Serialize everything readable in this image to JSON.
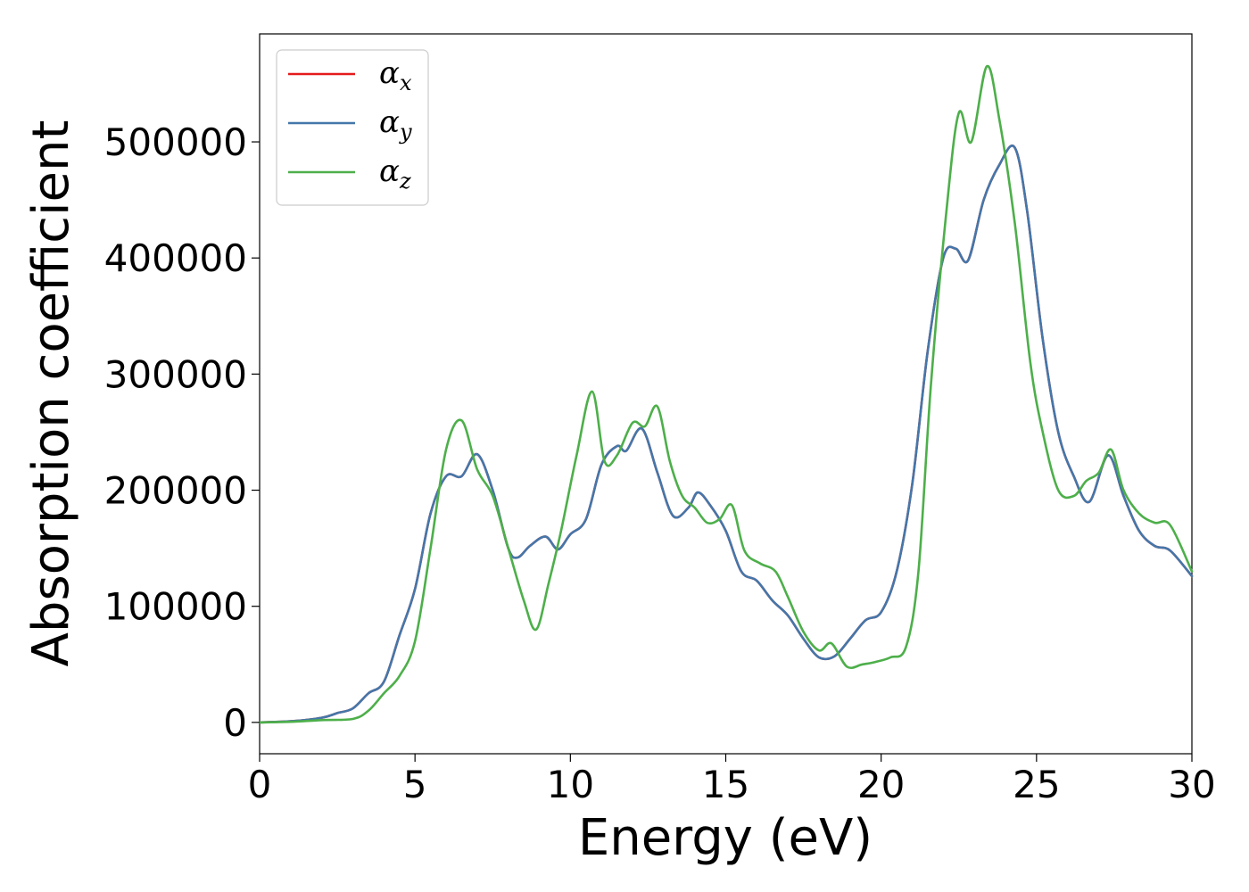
{
  "chart_data": {
    "type": "line",
    "xlabel": "Energy (eV)",
    "ylabel": "Absorption coefficient",
    "xlim": [
      0,
      30
    ],
    "ylim": [
      -27000,
      593000
    ],
    "xticks": [
      0,
      5,
      10,
      15,
      20,
      25,
      30
    ],
    "yticks": [
      0,
      100000,
      200000,
      300000,
      400000,
      500000
    ],
    "grid": false,
    "legend_position": "top-left",
    "series": [
      {
        "name": "α",
        "subscript": "x",
        "color": "#e41a1c",
        "x": [
          0,
          1,
          2,
          2.5,
          3,
          3.5,
          4,
          4.5,
          5,
          5.5,
          6,
          6.5,
          7,
          7.5,
          8,
          8.3,
          8.7,
          9.2,
          9.6,
          10,
          10.5,
          11,
          11.5,
          11.8,
          12.3,
          12.8,
          13.3,
          13.8,
          14.1,
          14.5,
          15,
          15.5,
          16,
          16.5,
          17,
          17.5,
          18,
          18.5,
          19,
          19.5,
          20,
          20.5,
          21,
          21.5,
          22,
          22.4,
          22.8,
          23.3,
          23.8,
          24.3,
          24.7,
          25.2,
          25.7,
          26.2,
          26.7,
          27.3,
          27.8,
          28.3,
          28.8,
          29.3,
          30
        ],
        "y": [
          0,
          1000,
          4000,
          8000,
          12000,
          25000,
          35000,
          75000,
          115000,
          180000,
          212000,
          212000,
          231000,
          200000,
          150000,
          142000,
          152000,
          160000,
          149000,
          162000,
          175000,
          222000,
          238000,
          234000,
          253000,
          215000,
          178000,
          185000,
          198000,
          187000,
          165000,
          130000,
          122000,
          105000,
          92000,
          72000,
          56000,
          57000,
          72000,
          88000,
          95000,
          130000,
          205000,
          320000,
          400000,
          408000,
          398000,
          450000,
          480000,
          495000,
          440000,
          330000,
          250000,
          212000,
          190000,
          230000,
          195000,
          165000,
          152000,
          148000,
          126000
        ]
      },
      {
        "name": "α",
        "subscript": "y",
        "color": "#4477aa",
        "x": [
          0,
          1,
          2,
          2.5,
          3,
          3.5,
          4,
          4.5,
          5,
          5.5,
          6,
          6.5,
          7,
          7.5,
          8,
          8.3,
          8.7,
          9.2,
          9.6,
          10,
          10.5,
          11,
          11.5,
          11.8,
          12.3,
          12.8,
          13.3,
          13.8,
          14.1,
          14.5,
          15,
          15.5,
          16,
          16.5,
          17,
          17.5,
          18,
          18.5,
          19,
          19.5,
          20,
          20.5,
          21,
          21.5,
          22,
          22.4,
          22.8,
          23.3,
          23.8,
          24.3,
          24.7,
          25.2,
          25.7,
          26.2,
          26.7,
          27.3,
          27.8,
          28.3,
          28.8,
          29.3,
          30
        ],
        "y": [
          0,
          1000,
          4000,
          8000,
          12000,
          25000,
          35000,
          75000,
          115000,
          180000,
          212000,
          212000,
          231000,
          200000,
          150000,
          142000,
          152000,
          160000,
          149000,
          162000,
          175000,
          222000,
          238000,
          234000,
          253000,
          215000,
          178000,
          185000,
          198000,
          187000,
          165000,
          130000,
          122000,
          105000,
          92000,
          72000,
          56000,
          57000,
          72000,
          88000,
          95000,
          130000,
          205000,
          320000,
          400000,
          408000,
          398000,
          450000,
          480000,
          495000,
          440000,
          330000,
          250000,
          212000,
          190000,
          230000,
          195000,
          165000,
          152000,
          148000,
          126000
        ]
      },
      {
        "name": "α",
        "subscript": "z",
        "color": "#4daf4a",
        "x": [
          0,
          1,
          2,
          3,
          3.5,
          4,
          4.5,
          5,
          5.5,
          6,
          6.5,
          7,
          7.5,
          8,
          8.5,
          8.9,
          9.3,
          9.7,
          10.2,
          10.7,
          11.1,
          11.5,
          12,
          12.4,
          12.8,
          13.2,
          13.6,
          14,
          14.4,
          14.8,
          15.2,
          15.6,
          16.1,
          16.6,
          17,
          17.5,
          18,
          18.4,
          18.9,
          19.4,
          19.8,
          20.3,
          20.8,
          21.2,
          21.6,
          22.1,
          22.5,
          22.9,
          23.4,
          23.8,
          24.3,
          24.8,
          25.2,
          25.7,
          26.2,
          26.6,
          27,
          27.4,
          27.8,
          28.3,
          28.8,
          29.3,
          30
        ],
        "y": [
          0,
          500,
          2000,
          3000,
          10000,
          25000,
          40000,
          70000,
          150000,
          235000,
          260000,
          218000,
          195000,
          150000,
          105000,
          80000,
          120000,
          165000,
          230000,
          285000,
          225000,
          230000,
          258000,
          255000,
          272000,
          225000,
          195000,
          185000,
          172000,
          175000,
          187000,
          148000,
          137000,
          130000,
          108000,
          78000,
          62000,
          68000,
          48000,
          50000,
          52000,
          56000,
          65000,
          130000,
          290000,
          440000,
          525000,
          500000,
          565000,
          520000,
          430000,
          310000,
          250000,
          200000,
          195000,
          208000,
          215000,
          235000,
          200000,
          180000,
          172000,
          170000,
          130000
        ]
      }
    ]
  }
}
